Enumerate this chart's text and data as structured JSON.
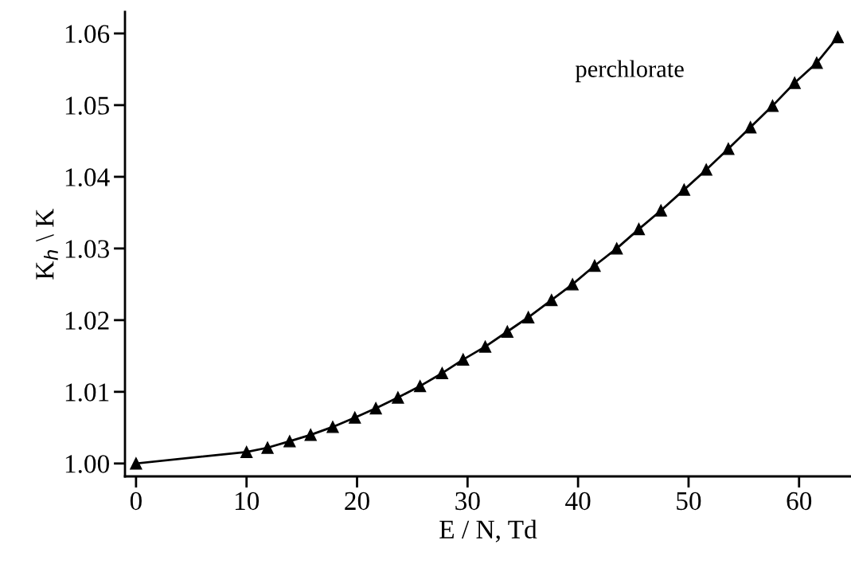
{
  "chart_data": {
    "type": "line",
    "xlabel": "E / N, Td",
    "ylabel": "K$_{h}$ \\ K",
    "x": [
      0,
      10,
      11.9,
      13.9,
      15.8,
      17.8,
      19.8,
      21.7,
      23.7,
      25.7,
      27.7,
      29.6,
      31.6,
      33.6,
      35.5,
      37.6,
      39.5,
      41.5,
      43.5,
      45.5,
      47.5,
      49.6,
      51.6,
      53.6,
      55.6,
      57.6,
      59.6,
      61.6,
      63.5
    ],
    "series": [
      {
        "color": "#000000",
        "values": [
          1.0,
          1.0016,
          1.0022,
          1.0031,
          1.004,
          1.0051,
          1.0064,
          1.0077,
          1.0092,
          1.0108,
          1.0126,
          1.0145,
          1.0163,
          1.0184,
          1.0204,
          1.0228,
          1.025,
          1.0276,
          1.03,
          1.0327,
          1.0353,
          1.0382,
          1.041,
          1.0439,
          1.0469,
          1.0499,
          1.0531,
          1.0559,
          1.0595
        ]
      }
    ],
    "annotations": [
      "perchlorate"
    ],
    "xlim": [
      -1,
      64.7
    ],
    "ylim": [
      0.9982,
      1.063
    ],
    "xticks": [
      0,
      10,
      20,
      30,
      40,
      50,
      60
    ],
    "yticks": [
      {
        "value": 1.0,
        "label": "1.00"
      },
      {
        "value": 1.01,
        "label": "1.01"
      },
      {
        "value": 1.02,
        "label": "1.02"
      },
      {
        "value": 1.03,
        "label": "1.03"
      },
      {
        "value": 1.04,
        "label": "1.04"
      },
      {
        "value": 1.05,
        "label": "1.05"
      },
      {
        "value": 1.06,
        "label": "1.06"
      }
    ],
    "marker": "triangle",
    "line_style": "solid",
    "grid": false,
    "legend": false
  }
}
